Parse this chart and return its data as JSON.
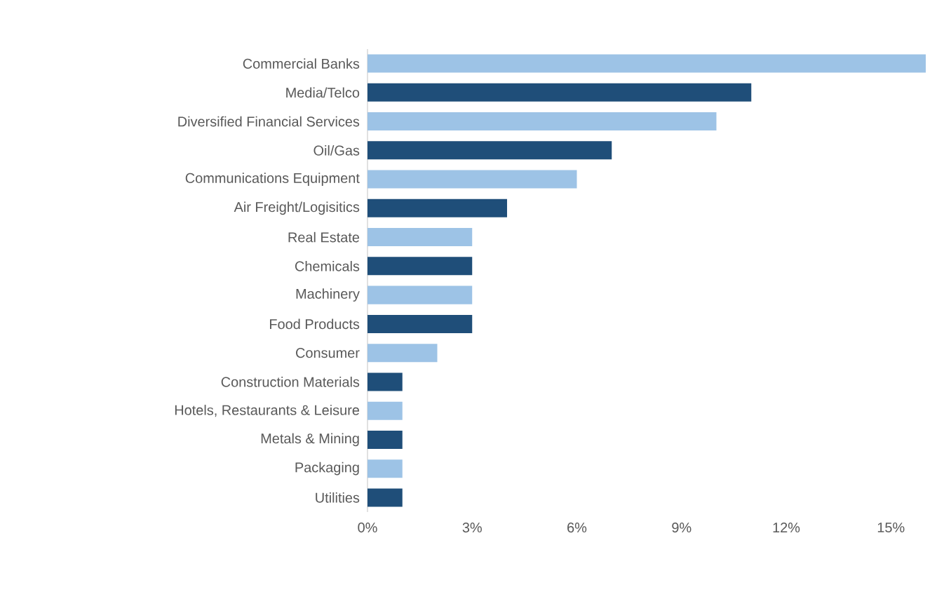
{
  "chart_data": {
    "type": "bar",
    "orientation": "horizontal",
    "categories": [
      "Commercial Banks",
      "Media/Telco",
      "Diversified Financial Services",
      "Oil/Gas",
      "Communications Equipment",
      "Air Freight/Logisitics",
      "Real Estate",
      "Chemicals",
      "Machinery",
      "Food Products",
      "Consumer",
      "Construction Materials",
      "Hotels, Restaurants & Leisure",
      "Metals & Mining",
      "Packaging",
      "Utilities"
    ],
    "values": [
      16,
      11,
      10,
      7,
      6,
      4,
      3,
      3,
      3,
      3,
      2,
      1,
      1,
      1,
      1,
      1
    ],
    "colors": [
      "#9dc3e6",
      "#1f4e79",
      "#9dc3e6",
      "#1f4e79",
      "#9dc3e6",
      "#1f4e79",
      "#9dc3e6",
      "#1f4e79",
      "#9dc3e6",
      "#1f4e79",
      "#9dc3e6",
      "#1f4e79",
      "#9dc3e6",
      "#1f4e79",
      "#9dc3e6",
      "#1f4e79"
    ],
    "xlim": [
      0,
      16
    ],
    "xticks": [
      {
        "value": 0,
        "label": "0%"
      },
      {
        "value": 3,
        "label": "3%"
      },
      {
        "value": 6,
        "label": "6%"
      },
      {
        "value": 9,
        "label": "9%"
      },
      {
        "value": 12,
        "label": "12%"
      },
      {
        "value": 15,
        "label": "15%"
      }
    ]
  }
}
